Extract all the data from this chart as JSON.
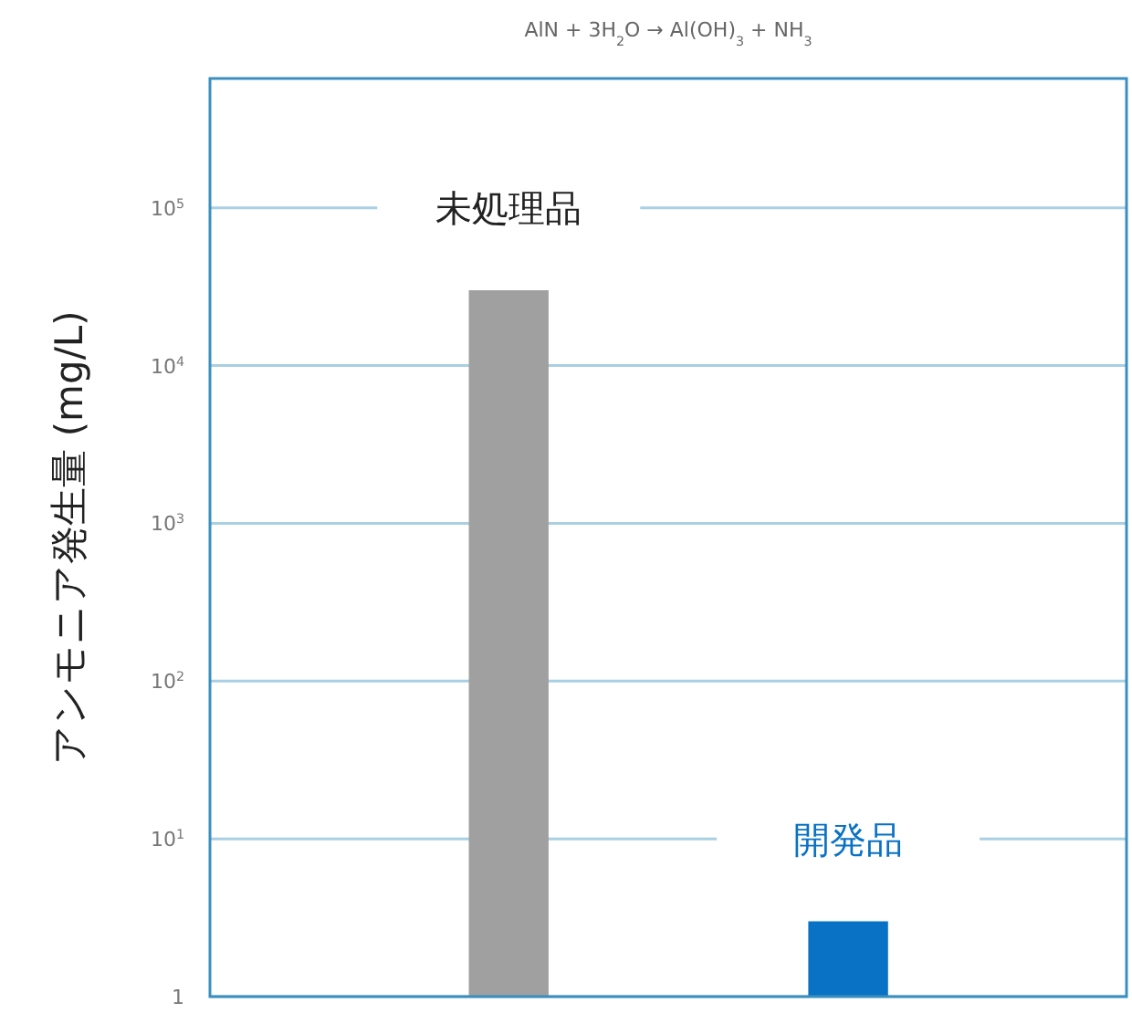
{
  "chart_data": {
    "type": "bar",
    "title": "AlN + 3H$_{2}$O → Al(OH)$_{3}$ + NH$_{3}$",
    "ylabel": "アンモニア発生量 (mg/L)",
    "categories": [
      "未処理品",
      "開発品"
    ],
    "values": [
      30000,
      3
    ],
    "colors": [
      "#a0a0a0",
      "#0a72c4"
    ],
    "log": "y",
    "ylim": [
      1,
      660000
    ],
    "yticks": [
      {
        "value": 1,
        "label": "1"
      },
      {
        "value": 10,
        "label": "10$^{1}$"
      },
      {
        "value": 100,
        "label": "10$^{2}$"
      },
      {
        "value": 1000,
        "label": "10$^{3}$"
      },
      {
        "value": 10000,
        "label": "10$^{4}$"
      },
      {
        "value": 100000,
        "label": "10$^{5}$"
      }
    ],
    "grid": "y"
  }
}
